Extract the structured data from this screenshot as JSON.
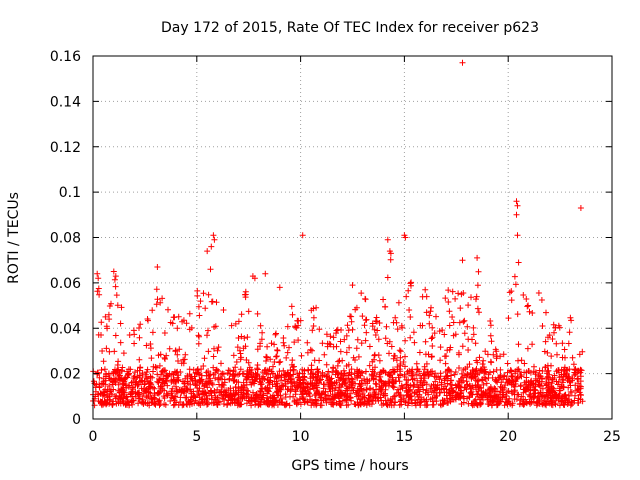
{
  "chart_data": {
    "type": "scatter",
    "title": "Day 172 of 2015, Rate Of TEC Index for receiver p623",
    "xlabel": "GPS time / hours",
    "ylabel": "ROTI / TECUs",
    "xlim": [
      0,
      25
    ],
    "ylim": [
      0,
      0.16
    ],
    "xticks": [
      0,
      5,
      10,
      15,
      20,
      25
    ],
    "yticks": [
      0,
      0.02,
      0.04,
      0.06,
      0.08,
      0.1,
      0.12,
      0.14,
      0.16
    ],
    "xtick_labels": [
      "0",
      "5",
      "10",
      "15",
      "20",
      "25"
    ],
    "ytick_labels": [
      "0",
      "0.02",
      "0.04",
      "0.06",
      "0.08",
      "0.1",
      "0.12",
      "0.14",
      "0.16"
    ],
    "grid": true,
    "marker": "+",
    "color": "#ff0000",
    "data_x_range": [
      0,
      23.6
    ],
    "envelope": [
      {
        "x": 0.0,
        "y": 0.03
      },
      {
        "x": 0.2,
        "y": 0.064
      },
      {
        "x": 0.5,
        "y": 0.045
      },
      {
        "x": 1.0,
        "y": 0.065
      },
      {
        "x": 1.5,
        "y": 0.048
      },
      {
        "x": 2.0,
        "y": 0.045
      },
      {
        "x": 2.5,
        "y": 0.04
      },
      {
        "x": 3.0,
        "y": 0.06
      },
      {
        "x": 3.5,
        "y": 0.055
      },
      {
        "x": 4.0,
        "y": 0.052
      },
      {
        "x": 4.5,
        "y": 0.045
      },
      {
        "x": 5.0,
        "y": 0.06
      },
      {
        "x": 5.5,
        "y": 0.062
      },
      {
        "x": 5.8,
        "y": 0.08
      },
      {
        "x": 6.0,
        "y": 0.06
      },
      {
        "x": 6.5,
        "y": 0.04
      },
      {
        "x": 7.0,
        "y": 0.05
      },
      {
        "x": 7.5,
        "y": 0.062
      },
      {
        "x": 8.0,
        "y": 0.045
      },
      {
        "x": 8.5,
        "y": 0.03
      },
      {
        "x": 9.0,
        "y": 0.058
      },
      {
        "x": 9.5,
        "y": 0.055
      },
      {
        "x": 10.0,
        "y": 0.05
      },
      {
        "x": 10.5,
        "y": 0.048
      },
      {
        "x": 11.0,
        "y": 0.053
      },
      {
        "x": 11.5,
        "y": 0.04
      },
      {
        "x": 12.0,
        "y": 0.042
      },
      {
        "x": 12.5,
        "y": 0.052
      },
      {
        "x": 13.0,
        "y": 0.058
      },
      {
        "x": 13.5,
        "y": 0.055
      },
      {
        "x": 14.0,
        "y": 0.062
      },
      {
        "x": 14.3,
        "y": 0.078
      },
      {
        "x": 14.6,
        "y": 0.055
      },
      {
        "x": 15.0,
        "y": 0.08
      },
      {
        "x": 15.5,
        "y": 0.052
      },
      {
        "x": 16.0,
        "y": 0.058
      },
      {
        "x": 16.5,
        "y": 0.05
      },
      {
        "x": 17.0,
        "y": 0.058
      },
      {
        "x": 17.5,
        "y": 0.06
      },
      {
        "x": 18.0,
        "y": 0.068
      },
      {
        "x": 18.5,
        "y": 0.07
      },
      {
        "x": 19.0,
        "y": 0.05
      },
      {
        "x": 19.5,
        "y": 0.035
      },
      {
        "x": 20.0,
        "y": 0.055
      },
      {
        "x": 20.5,
        "y": 0.068
      },
      {
        "x": 21.0,
        "y": 0.05
      },
      {
        "x": 21.5,
        "y": 0.056
      },
      {
        "x": 22.0,
        "y": 0.042
      },
      {
        "x": 22.5,
        "y": 0.045
      },
      {
        "x": 23.0,
        "y": 0.05
      },
      {
        "x": 23.6,
        "y": 0.035
      }
    ],
    "base_band": [
      0.006,
      0.022
    ],
    "outliers": [
      {
        "x": 17.8,
        "y": 0.157
      },
      {
        "x": 20.4,
        "y": 0.096
      },
      {
        "x": 20.45,
        "y": 0.094
      },
      {
        "x": 20.4,
        "y": 0.09
      },
      {
        "x": 20.45,
        "y": 0.081
      },
      {
        "x": 23.5,
        "y": 0.093
      },
      {
        "x": 10.1,
        "y": 0.081
      },
      {
        "x": 14.2,
        "y": 0.079
      },
      {
        "x": 15.0,
        "y": 0.081
      },
      {
        "x": 15.05,
        "y": 0.08
      },
      {
        "x": 5.8,
        "y": 0.081
      },
      {
        "x": 5.85,
        "y": 0.079
      },
      {
        "x": 5.7,
        "y": 0.076
      },
      {
        "x": 5.5,
        "y": 0.074
      },
      {
        "x": 14.3,
        "y": 0.074
      },
      {
        "x": 14.35,
        "y": 0.073
      },
      {
        "x": 18.5,
        "y": 0.071
      },
      {
        "x": 20.5,
        "y": 0.069
      },
      {
        "x": 17.8,
        "y": 0.07
      },
      {
        "x": 3.1,
        "y": 0.067
      },
      {
        "x": 8.3,
        "y": 0.064
      },
      {
        "x": 0.2,
        "y": 0.064
      },
      {
        "x": 0.25,
        "y": 0.062
      },
      {
        "x": 1.0,
        "y": 0.065
      },
      {
        "x": 1.1,
        "y": 0.063
      },
      {
        "x": 7.7,
        "y": 0.063
      },
      {
        "x": 7.8,
        "y": 0.062
      },
      {
        "x": 9.0,
        "y": 0.058
      },
      {
        "x": 12.5,
        "y": 0.059
      },
      {
        "x": 16.0,
        "y": 0.057
      }
    ]
  }
}
